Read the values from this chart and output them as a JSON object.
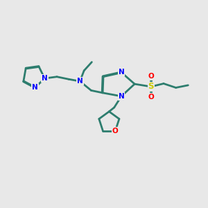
{
  "bg_color": "#e8e8e8",
  "bond_color": "#2d7d6e",
  "N_color": "#0000ff",
  "O_color": "#ff0000",
  "S_color": "#cccc00",
  "line_width": 2.0,
  "figsize": [
    3.0,
    3.0
  ],
  "dpi": 100,
  "xlim": [
    0,
    10
  ],
  "ylim": [
    0,
    10
  ]
}
